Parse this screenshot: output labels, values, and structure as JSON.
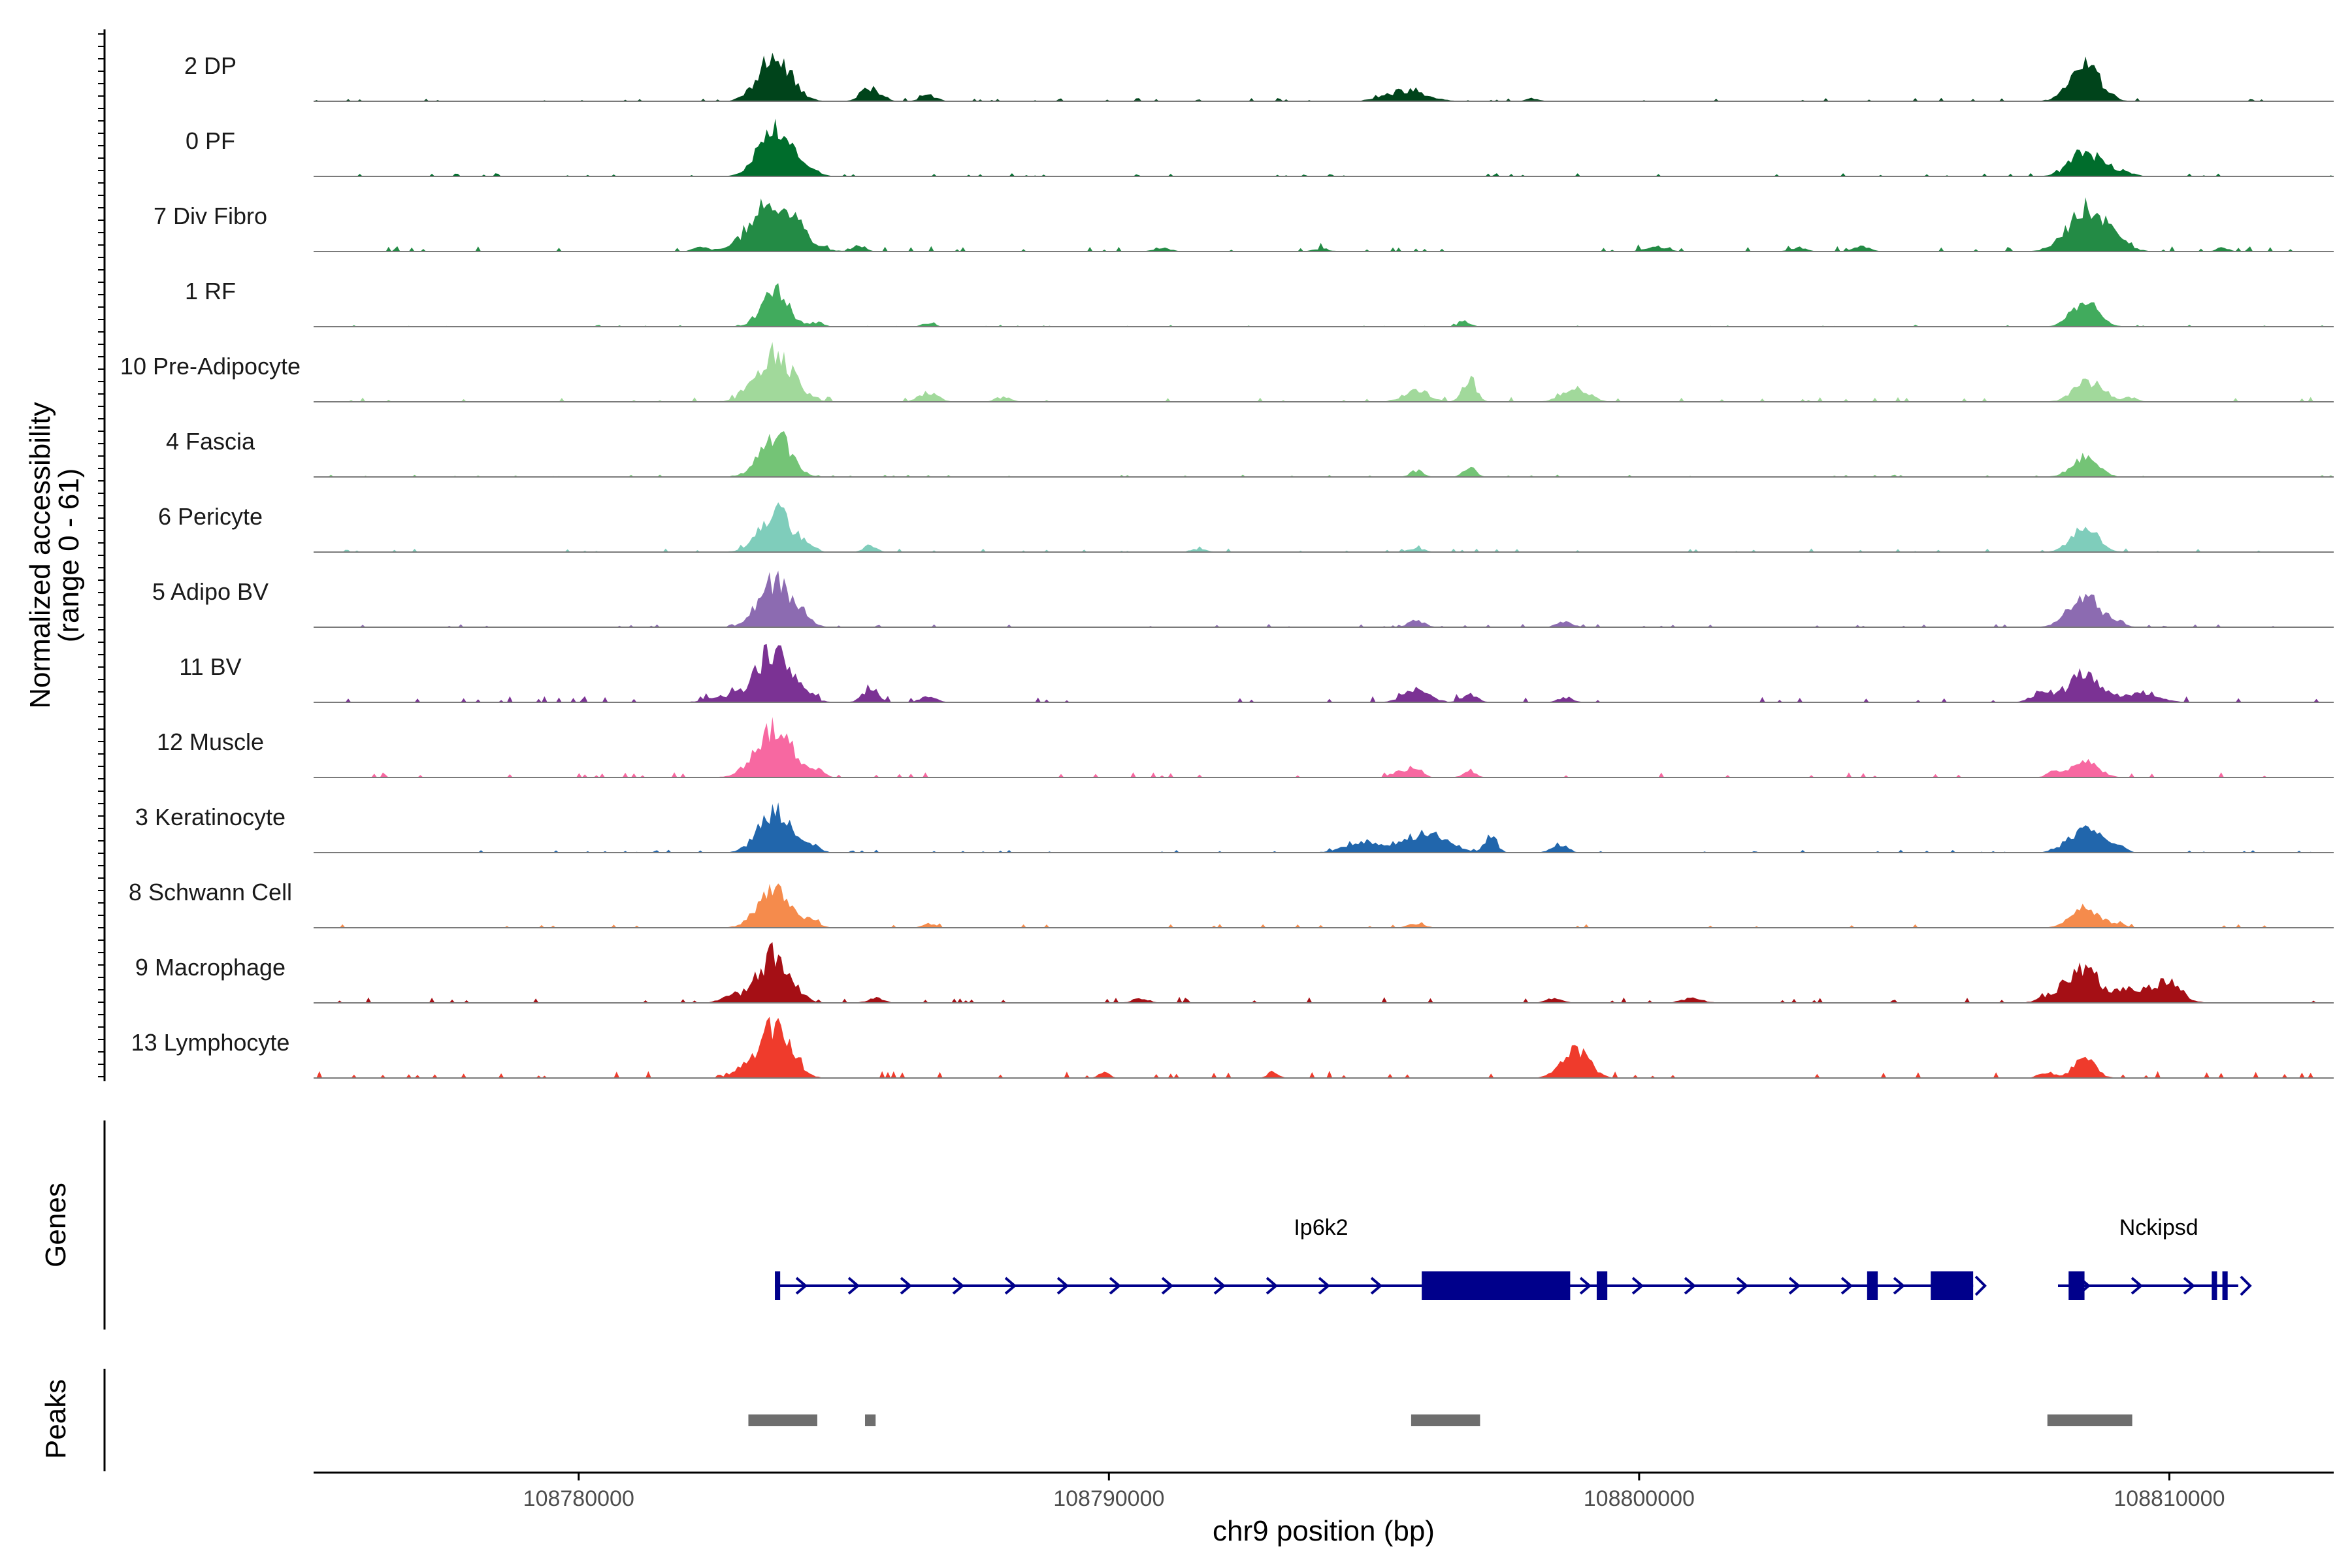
{
  "chart_data": {
    "type": "area",
    "title": "",
    "chromosome": "chr9",
    "xlabel": "chr9 position (bp)",
    "ylabel_line1": "Normalized accessibility",
    "ylabel_line2": "(range 0 - 61)",
    "y_range": [
      0,
      61
    ],
    "xlim": [
      108775000,
      108813100
    ],
    "x_ticks": [
      108780000,
      108790000,
      108800000,
      108810000
    ],
    "x_tick_labels": [
      "108780000",
      "108790000",
      "108800000",
      "108810000"
    ],
    "tracks": [
      {
        "name": "2 DP",
        "color": "#00441b",
        "scale": 0.95,
        "noise": 0.04,
        "peaks": [
          [
            108783700,
            300,
            0.95
          ],
          [
            108785500,
            180,
            0.28
          ],
          [
            108786600,
            150,
            0.12
          ],
          [
            108795600,
            380,
            0.22
          ],
          [
            108798000,
            120,
            0.06
          ],
          [
            108808400,
            280,
            0.78
          ]
        ]
      },
      {
        "name": "0 PF",
        "color": "#006d2c",
        "scale": 0.9,
        "noise": 0.04,
        "peaks": [
          [
            108783700,
            300,
            1.0
          ],
          [
            108784300,
            200,
            0.15
          ],
          [
            108808400,
            280,
            0.55
          ],
          [
            108809000,
            250,
            0.12
          ]
        ]
      },
      {
        "name": "7 Div Fibro",
        "color": "#238b45",
        "scale": 1.0,
        "noise": 0.06,
        "peaks": [
          [
            108783700,
            420,
            1.0
          ],
          [
            108782300,
            150,
            0.08
          ],
          [
            108785300,
            120,
            0.12
          ],
          [
            108791000,
            150,
            0.08
          ],
          [
            108794000,
            150,
            0.06
          ],
          [
            108800300,
            200,
            0.1
          ],
          [
            108803000,
            150,
            0.08
          ],
          [
            108804200,
            150,
            0.1
          ],
          [
            108808500,
            380,
            0.85
          ],
          [
            108811000,
            120,
            0.07
          ]
        ]
      },
      {
        "name": "1 RF",
        "color": "#41ab5d",
        "scale": 0.7,
        "noise": 0.03,
        "peaks": [
          [
            108783700,
            250,
            1.0
          ],
          [
            108784500,
            120,
            0.12
          ],
          [
            108786600,
            120,
            0.1
          ],
          [
            108796700,
            120,
            0.15
          ],
          [
            108808400,
            250,
            0.7
          ]
        ]
      },
      {
        "name": "10 Pre-Adipocyte",
        "color": "#a1d99b",
        "scale": 0.9,
        "noise": 0.06,
        "peaks": [
          [
            108783700,
            350,
            1.0
          ],
          [
            108786600,
            180,
            0.2
          ],
          [
            108788000,
            150,
            0.1
          ],
          [
            108795800,
            250,
            0.25
          ],
          [
            108796800,
            120,
            0.55
          ],
          [
            108798800,
            250,
            0.28
          ],
          [
            108808500,
            280,
            0.45
          ],
          [
            108809300,
            120,
            0.1
          ]
        ]
      },
      {
        "name": "4 Fascia",
        "color": "#74c476",
        "scale": 0.85,
        "noise": 0.03,
        "peaks": [
          [
            108783700,
            280,
            1.0
          ],
          [
            108795800,
            120,
            0.15
          ],
          [
            108796800,
            120,
            0.2
          ],
          [
            108808400,
            250,
            0.45
          ]
        ]
      },
      {
        "name": "6 Pericyte",
        "color": "#7fcdbb",
        "scale": 0.8,
        "noise": 0.05,
        "peaks": [
          [
            108783700,
            300,
            1.0
          ],
          [
            108784300,
            150,
            0.15
          ],
          [
            108785500,
            120,
            0.18
          ],
          [
            108791700,
            150,
            0.08
          ],
          [
            108795800,
            150,
            0.1
          ],
          [
            108808400,
            250,
            0.6
          ]
        ]
      },
      {
        "name": "5 Adipo BV",
        "color": "#8c6bb1",
        "scale": 0.9,
        "noise": 0.04,
        "peaks": [
          [
            108783700,
            300,
            1.0
          ],
          [
            108784300,
            150,
            0.15
          ],
          [
            108795800,
            150,
            0.15
          ],
          [
            108798600,
            150,
            0.12
          ],
          [
            108808400,
            300,
            0.65
          ],
          [
            108809000,
            150,
            0.1
          ]
        ]
      },
      {
        "name": "11 BV",
        "color": "#7b3294",
        "scale": 1.0,
        "noise": 0.07,
        "peaks": [
          [
            108783700,
            350,
            1.0
          ],
          [
            108782700,
            300,
            0.1
          ],
          [
            108785500,
            150,
            0.25
          ],
          [
            108786600,
            150,
            0.12
          ],
          [
            108795800,
            250,
            0.25
          ],
          [
            108796800,
            150,
            0.15
          ],
          [
            108798600,
            150,
            0.1
          ],
          [
            108808400,
            300,
            0.55
          ],
          [
            108807600,
            200,
            0.2
          ],
          [
            108809500,
            300,
            0.2
          ]
        ]
      },
      {
        "name": "12 Muscle",
        "color": "#f768a1",
        "scale": 0.95,
        "noise": 0.06,
        "peaks": [
          [
            108783700,
            350,
            1.0
          ],
          [
            108784500,
            120,
            0.12
          ],
          [
            108795500,
            150,
            0.15
          ],
          [
            108795800,
            120,
            0.18
          ],
          [
            108796800,
            120,
            0.15
          ],
          [
            108808400,
            250,
            0.35
          ],
          [
            108807800,
            120,
            0.1
          ]
        ]
      },
      {
        "name": "3 Keratinocyte",
        "color": "#2166ac",
        "scale": 0.8,
        "noise": 0.04,
        "peaks": [
          [
            108783700,
            300,
            1.0
          ],
          [
            108784400,
            150,
            0.15
          ],
          [
            108794800,
            350,
            0.25
          ],
          [
            108795800,
            300,
            0.4
          ],
          [
            108796300,
            250,
            0.3
          ],
          [
            108797200,
            120,
            0.42
          ],
          [
            108798500,
            150,
            0.2
          ],
          [
            108808400,
            300,
            0.6
          ],
          [
            108809000,
            150,
            0.15
          ]
        ]
      },
      {
        "name": "8 Schwann Cell",
        "color": "#f58b4c",
        "scale": 0.8,
        "noise": 0.05,
        "peaks": [
          [
            108783700,
            300,
            1.0
          ],
          [
            108784400,
            150,
            0.12
          ],
          [
            108786600,
            120,
            0.1
          ],
          [
            108795800,
            150,
            0.1
          ],
          [
            108808400,
            250,
            0.5
          ],
          [
            108809000,
            150,
            0.1
          ]
        ]
      },
      {
        "name": "9 Macrophage",
        "color": "#a50f15",
        "scale": 0.95,
        "noise": 0.07,
        "peaks": [
          [
            108783700,
            300,
            1.0
          ],
          [
            108782900,
            200,
            0.15
          ],
          [
            108785600,
            150,
            0.1
          ],
          [
            108790600,
            150,
            0.1
          ],
          [
            108798400,
            150,
            0.1
          ],
          [
            108801000,
            200,
            0.1
          ],
          [
            108808000,
            300,
            0.25
          ],
          [
            108808400,
            250,
            0.55
          ],
          [
            108809300,
            400,
            0.3
          ],
          [
            108810000,
            250,
            0.35
          ]
        ]
      },
      {
        "name": "13 Lymphocyte",
        "color": "#ef3b2c",
        "scale": 1.0,
        "noise": 0.08,
        "peaks": [
          [
            108783700,
            300,
            1.0
          ],
          [
            108783100,
            200,
            0.15
          ],
          [
            108789900,
            100,
            0.12
          ],
          [
            108793100,
            100,
            0.12
          ],
          [
            108798800,
            250,
            0.6
          ],
          [
            108808400,
            200,
            0.4
          ],
          [
            108807700,
            150,
            0.12
          ]
        ]
      }
    ],
    "genes_label": "Genes",
    "peaks_label": "Peaks",
    "genes": [
      {
        "name": "Ip6k2",
        "start": 108783700,
        "end": 108806300,
        "strand": "+",
        "color": "#00008b",
        "exons": [
          [
            108783700,
            108783800
          ],
          [
            108795900,
            108798700
          ],
          [
            108799200,
            108799400
          ],
          [
            108804300,
            108804500
          ],
          [
            108805500,
            108806300
          ]
        ]
      },
      {
        "name": "Nckipsd",
        "start": 108807900,
        "end": 108811300,
        "strand": "+",
        "color": "#00008b",
        "exons": [
          [
            108808100,
            108808400
          ],
          [
            108810800,
            108810900
          ],
          [
            108811000,
            108811100
          ]
        ]
      }
    ],
    "peak_regions": [
      [
        108783200,
        108784500
      ],
      [
        108785400,
        108785600
      ],
      [
        108795700,
        108797000
      ],
      [
        108807700,
        108809300
      ]
    ],
    "peak_color": "#6e6e6e",
    "grid": false
  }
}
